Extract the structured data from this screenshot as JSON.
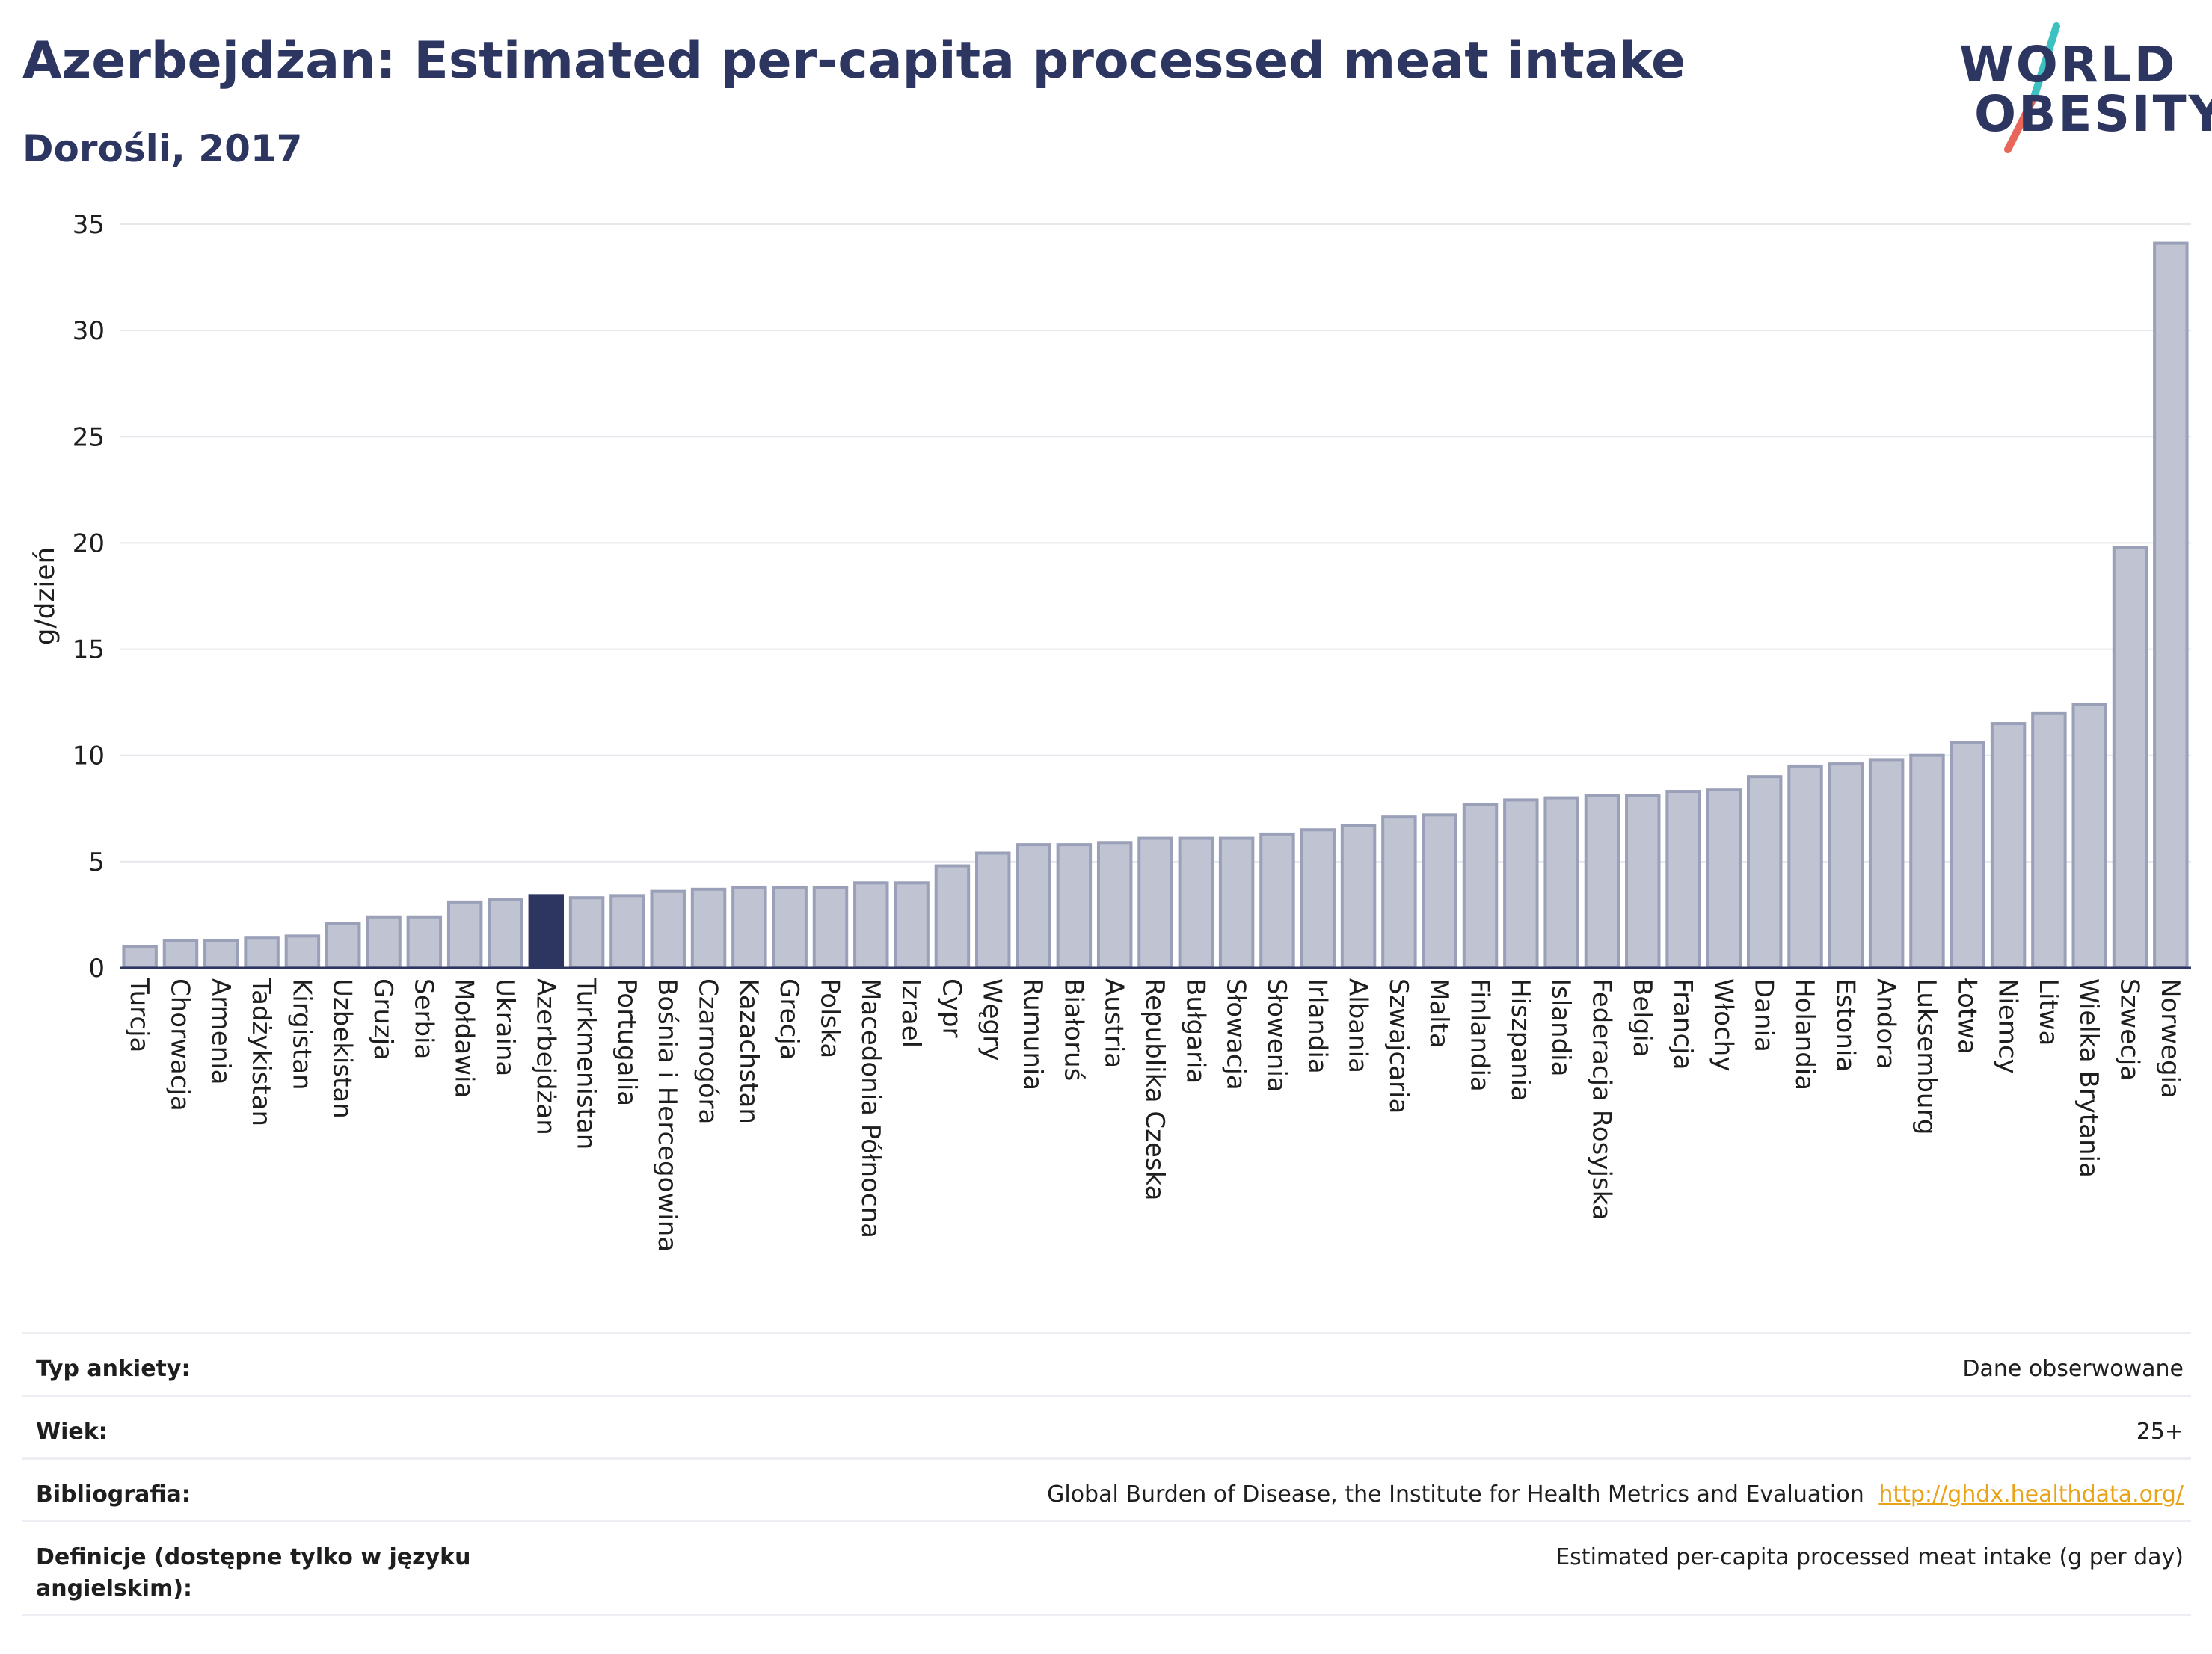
{
  "header": {
    "title": "Azerbejdżan: Estimated per-capita processed meat intake",
    "subtitle": "Dorośli, 2017"
  },
  "logo": {
    "line1": "WORLD",
    "line2": "OBESITY",
    "accent_colors": [
      "#3cc0c0",
      "#e8675a"
    ]
  },
  "colors": {
    "bar": "#bfc3d2",
    "bar_stroke": "#9aa0b8",
    "highlight": "#2d3561",
    "text": "#2d3561"
  },
  "chart_data": {
    "type": "bar",
    "ylabel": "g/dzień",
    "ylim": [
      0,
      35
    ],
    "yticks": [
      0,
      5,
      10,
      15,
      20,
      25,
      30,
      35
    ],
    "grid": true,
    "highlight": "Azerbejdżan",
    "categories": [
      "Turcja",
      "Chorwacja",
      "Armenia",
      "Tadżykistan",
      "Kirgistan",
      "Uzbekistan",
      "Gruzja",
      "Serbia",
      "Mołdawia",
      "Ukraina",
      "Azerbejdżan",
      "Turkmenistan",
      "Portugalia",
      "Bośnia i Hercegowina",
      "Czarnogóra",
      "Kazachstan",
      "Grecja",
      "Polska",
      "Macedonia Północna",
      "Izrael",
      "Cypr",
      "Węgry",
      "Rumunia",
      "Białoruś",
      "Austria",
      "Republika Czeska",
      "Bułgaria",
      "Słowacja",
      "Słowenia",
      "Irlandia",
      "Albania",
      "Szwajcaria",
      "Malta",
      "Finlandia",
      "Hiszpania",
      "Islandia",
      "Federacja Rosyjska",
      "Belgia",
      "Francja",
      "Włochy",
      "Dania",
      "Holandia",
      "Estonia",
      "Andora",
      "Luksemburg",
      "Łotwa",
      "Niemcy",
      "Litwa",
      "Wielka Brytania",
      "Szwecja",
      "Norwegia"
    ],
    "values": [
      1.0,
      1.3,
      1.3,
      1.4,
      1.5,
      2.1,
      2.4,
      2.4,
      3.1,
      3.2,
      3.4,
      3.3,
      3.4,
      3.6,
      3.7,
      3.8,
      3.8,
      3.8,
      4.0,
      4.0,
      4.8,
      5.4,
      5.8,
      5.8,
      5.9,
      6.1,
      6.1,
      6.1,
      6.3,
      6.5,
      6.7,
      7.1,
      7.2,
      7.7,
      7.9,
      8.0,
      8.1,
      8.1,
      8.3,
      8.4,
      9.0,
      9.5,
      9.6,
      9.8,
      10.0,
      10.6,
      11.5,
      12.0,
      12.4,
      19.8,
      34.1
    ]
  },
  "info": {
    "rows": [
      {
        "label": "Typ ankiety:",
        "value": "Dane obserwowane"
      },
      {
        "label": "Wiek:",
        "value": "25+"
      },
      {
        "label": "Bibliografia:",
        "value": "Global Burden of Disease, the Institute for Health Metrics and Evaluation",
        "link": "http://ghdx.healthdata.org/"
      },
      {
        "label": "Definicje (dostępne tylko w języku angielskim):",
        "value": "Estimated per-capita processed meat intake (g per day)"
      }
    ]
  }
}
